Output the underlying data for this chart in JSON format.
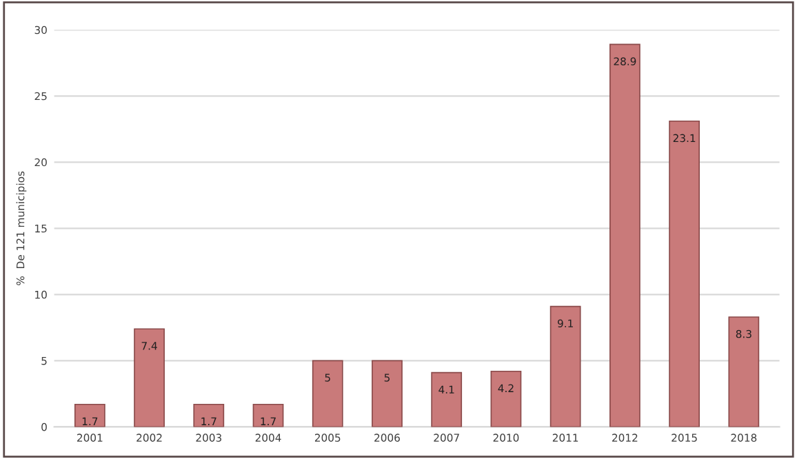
{
  "chart_data": {
    "type": "bar",
    "ylabel": "%  De 121 municipios",
    "categories": [
      "2001",
      "2002",
      "2003",
      "2004",
      "2005",
      "2006",
      "2007",
      "2010",
      "2011",
      "2012",
      "2015",
      "2018"
    ],
    "values": [
      1.7,
      7.4,
      1.7,
      1.7,
      5,
      5,
      4.1,
      4.2,
      9.1,
      28.9,
      23.1,
      8.3
    ],
    "color": "#c97a7a",
    "ylim": [
      0,
      30
    ],
    "yticks": [
      0,
      5,
      10,
      15,
      20,
      25,
      30
    ],
    "grid": "y",
    "data_labels": true
  }
}
